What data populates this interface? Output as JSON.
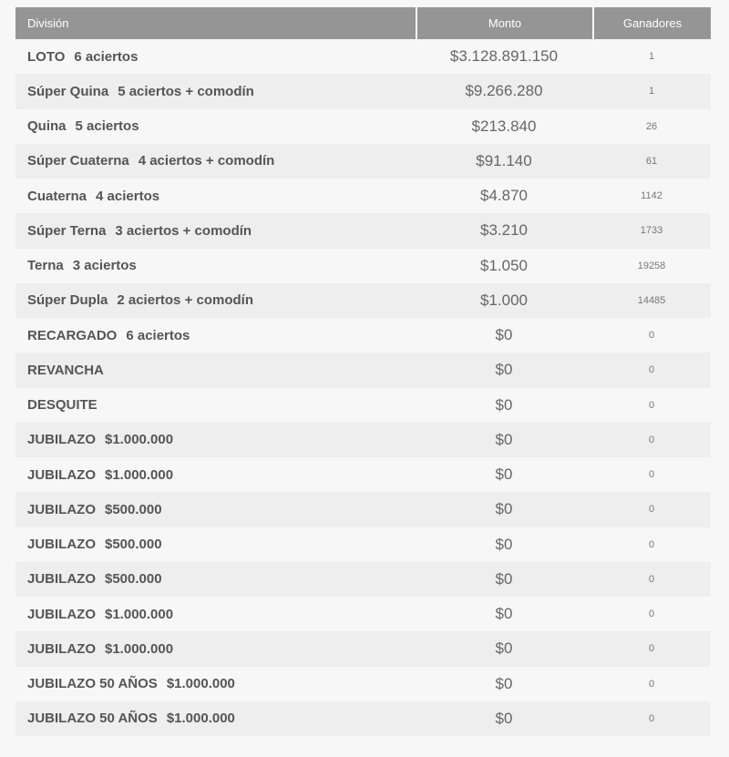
{
  "table": {
    "headers": {
      "division": "División",
      "monto": "Monto",
      "ganadores": "Ganadores"
    },
    "colors": {
      "header_bg": "#959595",
      "header_text": "#ffffff",
      "row_odd_bg": "#f7f7f7",
      "row_even_bg": "#eeeeee",
      "page_bg": "#f7f7f7"
    },
    "rows": [
      {
        "name": "LOTO",
        "detail": "6 aciertos",
        "monto": "$3.128.891.150",
        "ganadores": "1"
      },
      {
        "name": "Súper Quina",
        "detail": "5 aciertos + comodín",
        "monto": "$9.266.280",
        "ganadores": "1"
      },
      {
        "name": "Quina",
        "detail": "5 aciertos",
        "monto": "$213.840",
        "ganadores": "26"
      },
      {
        "name": "Súper Cuaterna",
        "detail": "4 aciertos + comodín",
        "monto": "$91.140",
        "ganadores": "61"
      },
      {
        "name": "Cuaterna",
        "detail": "4 aciertos",
        "monto": "$4.870",
        "ganadores": "1142"
      },
      {
        "name": "Súper Terna",
        "detail": "3 aciertos + comodín",
        "monto": "$3.210",
        "ganadores": "1733"
      },
      {
        "name": "Terna",
        "detail": "3 aciertos",
        "monto": "$1.050",
        "ganadores": "19258"
      },
      {
        "name": "Súper Dupla",
        "detail": "2 aciertos + comodín",
        "monto": "$1.000",
        "ganadores": "14485"
      },
      {
        "name": "RECARGADO",
        "detail": "6 aciertos",
        "monto": "$0",
        "ganadores": "0"
      },
      {
        "name": "REVANCHA",
        "detail": "",
        "monto": "$0",
        "ganadores": "0"
      },
      {
        "name": "DESQUITE",
        "detail": "",
        "monto": "$0",
        "ganadores": "0"
      },
      {
        "name": "JUBILAZO",
        "detail": "$1.000.000",
        "monto": "$0",
        "ganadores": "0"
      },
      {
        "name": "JUBILAZO",
        "detail": "$1.000.000",
        "monto": "$0",
        "ganadores": "0"
      },
      {
        "name": "JUBILAZO",
        "detail": "$500.000",
        "monto": "$0",
        "ganadores": "0"
      },
      {
        "name": "JUBILAZO",
        "detail": "$500.000",
        "monto": "$0",
        "ganadores": "0"
      },
      {
        "name": "JUBILAZO",
        "detail": "$500.000",
        "monto": "$0",
        "ganadores": "0"
      },
      {
        "name": "JUBILAZO",
        "detail": "$1.000.000",
        "monto": "$0",
        "ganadores": "0"
      },
      {
        "name": "JUBILAZO",
        "detail": "$1.000.000",
        "monto": "$0",
        "ganadores": "0"
      },
      {
        "name": "JUBILAZO 50 AÑOS",
        "detail": "$1.000.000",
        "monto": "$0",
        "ganadores": "0"
      },
      {
        "name": "JUBILAZO 50 AÑOS",
        "detail": "$1.000.000",
        "monto": "$0",
        "ganadores": "0"
      }
    ]
  }
}
